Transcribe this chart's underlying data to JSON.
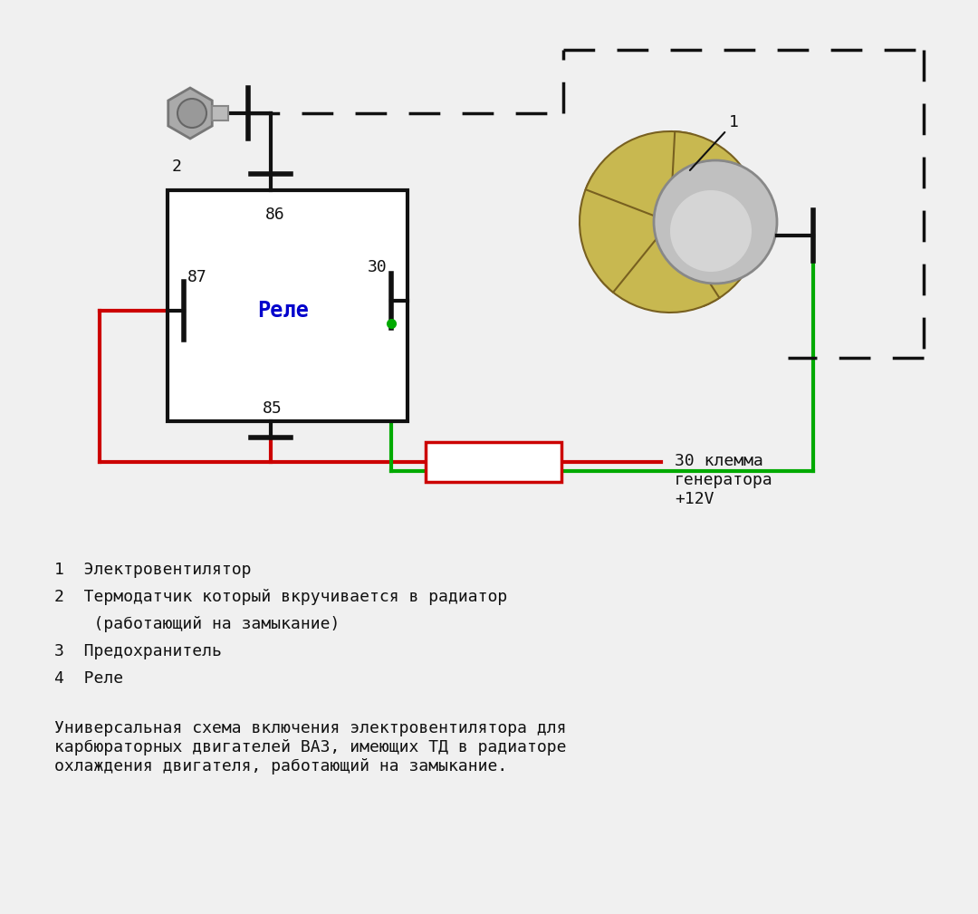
{
  "bg_color": "#f0f0f0",
  "relay_label": "Реле",
  "relay_label_color": "#0000cc",
  "dashed_color": "#000000",
  "red_color": "#cc0000",
  "green_color": "#00aa00",
  "black_color": "#111111",
  "legend_lines": [
    "1  Электровентилятор",
    "2  Термодатчик который вкручивается в радиатор",
    "    (работающий на замыкание)",
    "3  Предохранитель",
    "4  Реле"
  ],
  "description": "Универсальная схема включения электровентилятора для\nкарбюраторных двигателей ВАЗ, имеющих ТД в радиаторе\nохлаждения двигателя, работающий на замыкание.",
  "label_30_klamma": "30 клемма\nгенератора\n+12V"
}
